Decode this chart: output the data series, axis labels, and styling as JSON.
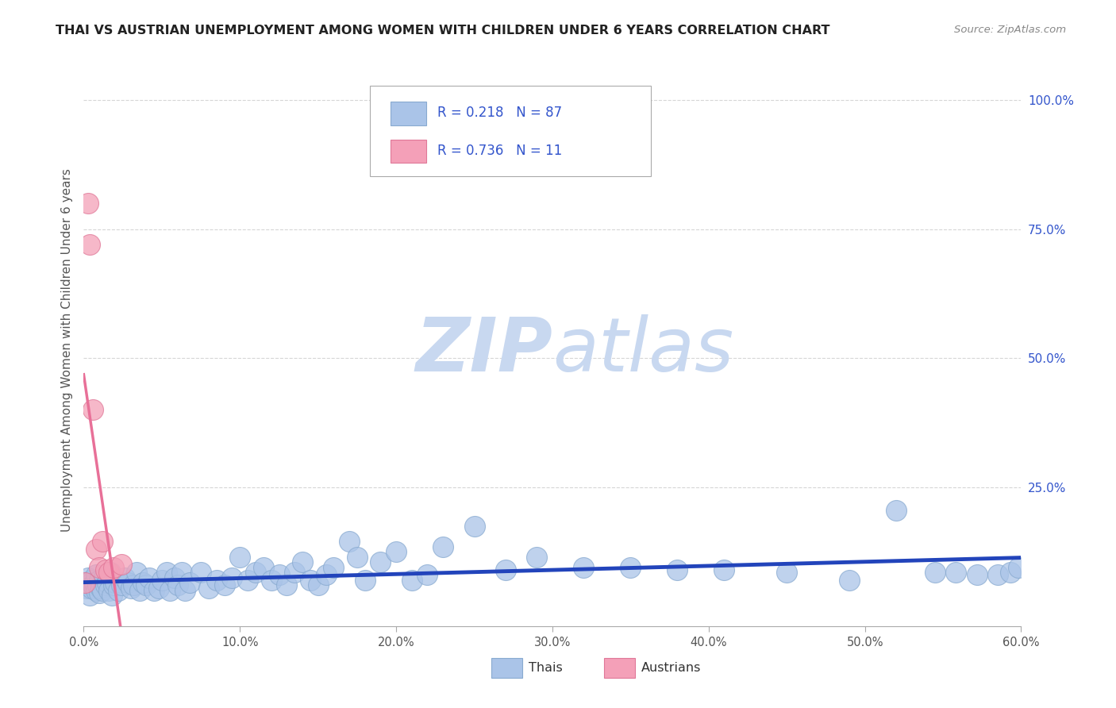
{
  "title": "THAI VS AUSTRIAN UNEMPLOYMENT AMONG WOMEN WITH CHILDREN UNDER 6 YEARS CORRELATION CHART",
  "source": "Source: ZipAtlas.com",
  "ylabel": "Unemployment Among Women with Children Under 6 years",
  "xlim": [
    0.0,
    0.6
  ],
  "ylim": [
    -0.02,
    1.05
  ],
  "xtick_labels": [
    "0.0%",
    "",
    "10.0%",
    "",
    "20.0%",
    "",
    "30.0%",
    "",
    "40.0%",
    "",
    "50.0%",
    "",
    "60.0%"
  ],
  "xtick_vals": [
    0.0,
    0.05,
    0.1,
    0.15,
    0.2,
    0.25,
    0.3,
    0.35,
    0.4,
    0.45,
    0.5,
    0.55,
    0.6
  ],
  "ytick_labels": [
    "100.0%",
    "75.0%",
    "50.0%",
    "25.0%"
  ],
  "ytick_vals": [
    1.0,
    0.75,
    0.5,
    0.25
  ],
  "background_color": "#ffffff",
  "watermark_zip": "ZIP",
  "watermark_atlas": "atlas",
  "watermark_color": "#c8d8f0",
  "grid_color": "#cccccc",
  "legend_r1": "R = 0.218",
  "legend_n1": "N = 87",
  "legend_r2": "R = 0.736",
  "legend_n2": "N = 11",
  "legend_color": "#3355cc",
  "thai_color": "#aac4e8",
  "thai_edge_color": "#88aad0",
  "austrian_color": "#f4a0b8",
  "austrian_edge_color": "#e07898",
  "thai_line_color": "#2244bb",
  "austrian_line_color": "#e87098",
  "thais_x": [
    0.001,
    0.002,
    0.003,
    0.003,
    0.004,
    0.005,
    0.005,
    0.006,
    0.007,
    0.008,
    0.008,
    0.009,
    0.01,
    0.01,
    0.011,
    0.012,
    0.013,
    0.014,
    0.015,
    0.016,
    0.017,
    0.018,
    0.019,
    0.02,
    0.022,
    0.024,
    0.026,
    0.028,
    0.03,
    0.032,
    0.034,
    0.036,
    0.038,
    0.04,
    0.042,
    0.045,
    0.048,
    0.05,
    0.053,
    0.055,
    0.058,
    0.06,
    0.063,
    0.065,
    0.068,
    0.075,
    0.08,
    0.085,
    0.09,
    0.095,
    0.1,
    0.105,
    0.11,
    0.115,
    0.12,
    0.125,
    0.13,
    0.135,
    0.14,
    0.145,
    0.15,
    0.155,
    0.16,
    0.17,
    0.175,
    0.18,
    0.19,
    0.2,
    0.21,
    0.22,
    0.23,
    0.25,
    0.27,
    0.29,
    0.32,
    0.35,
    0.38,
    0.41,
    0.45,
    0.49,
    0.52,
    0.545,
    0.558,
    0.572,
    0.585,
    0.593,
    0.598
  ],
  "thais_y": [
    0.065,
    0.055,
    0.06,
    0.075,
    0.04,
    0.055,
    0.07,
    0.06,
    0.065,
    0.05,
    0.08,
    0.06,
    0.045,
    0.07,
    0.055,
    0.05,
    0.075,
    0.06,
    0.065,
    0.05,
    0.085,
    0.04,
    0.06,
    0.065,
    0.05,
    0.06,
    0.075,
    0.065,
    0.055,
    0.06,
    0.085,
    0.05,
    0.065,
    0.06,
    0.075,
    0.05,
    0.055,
    0.07,
    0.085,
    0.05,
    0.075,
    0.06,
    0.085,
    0.05,
    0.065,
    0.085,
    0.055,
    0.07,
    0.06,
    0.075,
    0.115,
    0.07,
    0.085,
    0.095,
    0.07,
    0.08,
    0.06,
    0.085,
    0.105,
    0.07,
    0.06,
    0.08,
    0.095,
    0.145,
    0.115,
    0.07,
    0.105,
    0.125,
    0.07,
    0.08,
    0.135,
    0.175,
    0.09,
    0.115,
    0.095,
    0.095,
    0.09,
    0.09,
    0.085,
    0.07,
    0.205,
    0.085,
    0.085,
    0.08,
    0.08,
    0.085,
    0.095
  ],
  "austrians_x": [
    0.001,
    0.003,
    0.004,
    0.006,
    0.008,
    0.01,
    0.012,
    0.014,
    0.016,
    0.019,
    0.024
  ],
  "austrians_y": [
    0.065,
    0.8,
    0.72,
    0.4,
    0.13,
    0.095,
    0.145,
    0.09,
    0.085,
    0.095,
    0.1
  ]
}
